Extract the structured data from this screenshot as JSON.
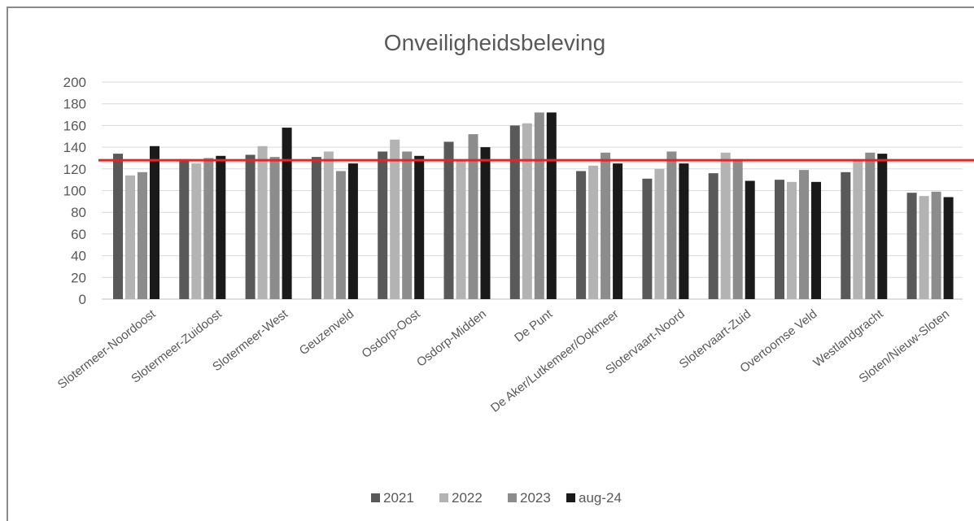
{
  "chart_data": {
    "type": "bar",
    "title": "Onveiligheidsbeleving",
    "xlabel": "",
    "ylabel": "",
    "ylim": [
      0,
      200
    ],
    "yticks": [
      0,
      20,
      40,
      60,
      80,
      100,
      120,
      140,
      160,
      180,
      200
    ],
    "grid": true,
    "legend_position": "bottom",
    "categories": [
      "Slotermeer-Noordoost",
      "Slotermeer-Zuidoost",
      "Slotermeer-West",
      "Geuzenveld",
      "Osdorp-Oost",
      "Osdorp-Midden",
      "De Punt",
      "De Aker/Lutkemeer/Ookmeer",
      "Slotervaart-Noord",
      "Slotervaart-Zuid",
      "Overtoomse Veld",
      "Westlandgracht",
      "Sloten/Nieuw-Sloten"
    ],
    "series": [
      {
        "name": "2021",
        "color": "#595959",
        "values": [
          134,
          129,
          133,
          131,
          136,
          145,
          160,
          118,
          111,
          116,
          110,
          117,
          98
        ]
      },
      {
        "name": "2022",
        "color": "#b3b3b3",
        "values": [
          114,
          125,
          141,
          136,
          147,
          128,
          162,
          123,
          120,
          135,
          108,
          127,
          95
        ]
      },
      {
        "name": "2023",
        "color": "#8c8c8c",
        "values": [
          117,
          130,
          131,
          118,
          136,
          152,
          172,
          135,
          136,
          129,
          119,
          135,
          99
        ]
      },
      {
        "name": "aug-24",
        "color": "#1a1a1a",
        "values": [
          141,
          132,
          158,
          125,
          132,
          140,
          172,
          125,
          125,
          109,
          108,
          134,
          94
        ]
      }
    ],
    "reference_line": {
      "value": 128,
      "color": "#e3242b"
    }
  }
}
